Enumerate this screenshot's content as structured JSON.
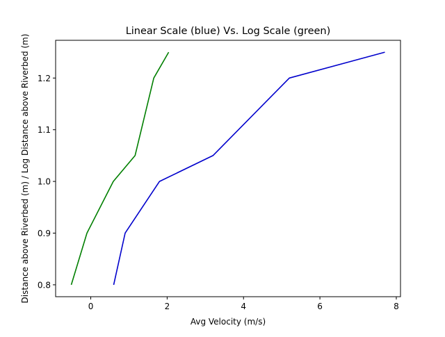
{
  "chart_data": {
    "type": "line",
    "title": "Linear Scale (blue) Vs. Log Scale (green)",
    "xlabel": "Avg Velocity (m/s)",
    "ylabel": "Distance above Riverbed (m) / Log Distance above Riverbed (m)",
    "xlim": [
      -0.92,
      8.11
    ],
    "ylim": [
      0.777,
      1.273
    ],
    "xticks": [
      0,
      2,
      4,
      6,
      8
    ],
    "yticks": [
      0.8,
      0.9,
      1.0,
      1.1,
      1.2
    ],
    "xtick_labels": [
      "0",
      "2",
      "4",
      "6",
      "8"
    ],
    "ytick_labels": [
      "0.8",
      "0.9",
      "1.0",
      "1.1",
      "1.2"
    ],
    "grid": false,
    "series": [
      {
        "color": "#0000cc",
        "points": [
          [
            0.6,
            0.8
          ],
          [
            0.9,
            0.9
          ],
          [
            1.8,
            1.0
          ],
          [
            3.2,
            1.05
          ],
          [
            5.2,
            1.2
          ],
          [
            7.7,
            1.25
          ]
        ]
      },
      {
        "color": "#007f00",
        "points": [
          [
            -0.51,
            0.8
          ],
          [
            -0.1,
            0.9
          ],
          [
            0.59,
            1.0
          ],
          [
            1.16,
            1.05
          ],
          [
            1.65,
            1.2
          ],
          [
            2.04,
            1.25
          ]
        ]
      }
    ]
  }
}
